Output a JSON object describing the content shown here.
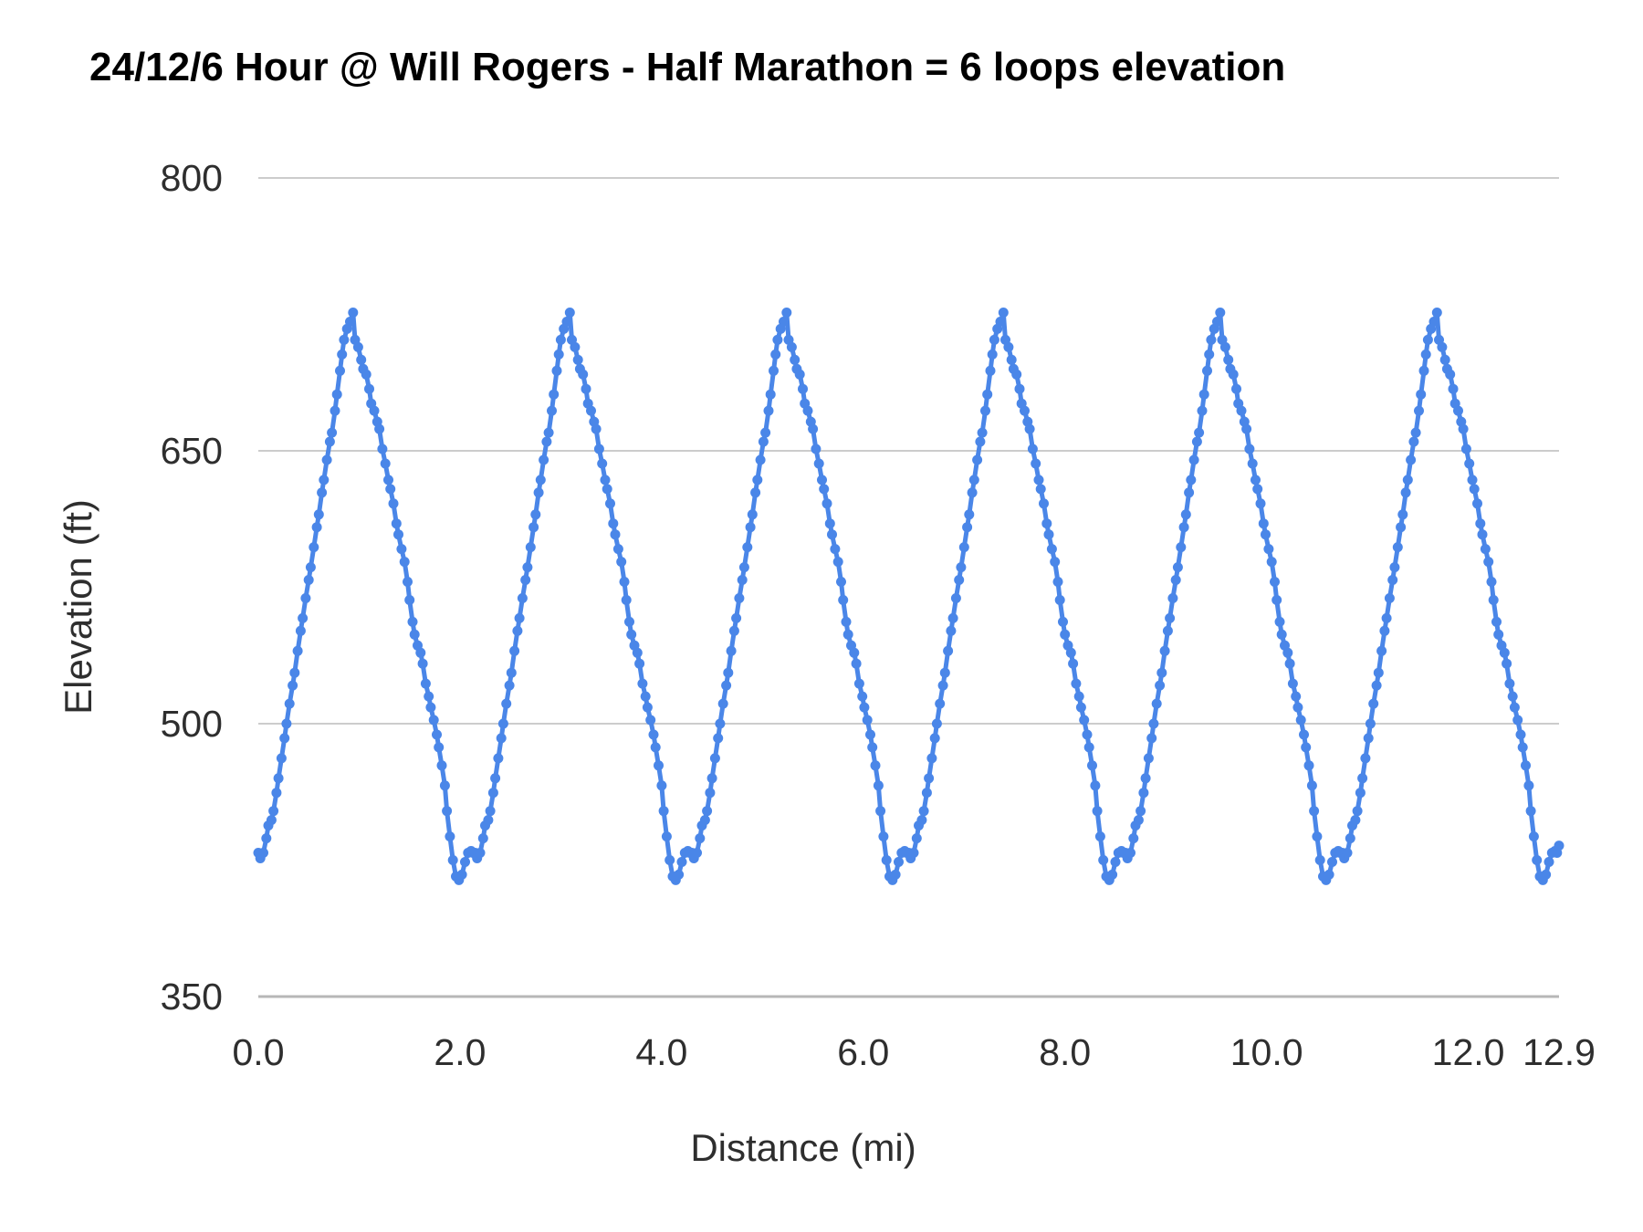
{
  "page": {
    "background": "#ffffff"
  },
  "chart_data": {
    "type": "line",
    "title": "24/12/6 Hour @ Will Rogers  - Half Marathon = 6 loops  elevation",
    "xlabel": "Distance (mi)",
    "ylabel": "Elevation (ft)",
    "xlim": [
      0,
      12.9
    ],
    "ylim": [
      350,
      800
    ],
    "grid": true,
    "legend_position": "none",
    "x_ticks": [
      {
        "value": 0,
        "label": "0.0"
      },
      {
        "value": 2,
        "label": "2.0"
      },
      {
        "value": 4,
        "label": "4.0"
      },
      {
        "value": 6,
        "label": "6.0"
      },
      {
        "value": 8,
        "label": "8.0"
      },
      {
        "value": 10,
        "label": "10.0"
      },
      {
        "value": 12,
        "label": "12.0"
      },
      {
        "value": 12.9,
        "label": "12.9"
      }
    ],
    "y_ticks": [
      {
        "value": 350,
        "label": "350"
      },
      {
        "value": 500,
        "label": "500"
      },
      {
        "value": 650,
        "label": "650"
      },
      {
        "value": 800,
        "label": "800"
      }
    ],
    "colors": {
      "series": "#4a86e8",
      "gridline": "#cccccc",
      "baseline": "#b7b7b7",
      "title_text": "#000000",
      "axis_text": "#2e2e2e"
    },
    "marker": "circle",
    "series": [
      {
        "name": "elevation",
        "loops": 6,
        "loop_length_mi": 2.15,
        "total_mi": 12.9,
        "peak_ft": 726,
        "valley_ft": 414,
        "start_ft": 429,
        "end_ft": 433,
        "loop_profile": [
          [
            0.0,
            429
          ],
          [
            0.02,
            426
          ],
          [
            0.05,
            429
          ],
          [
            0.08,
            437
          ],
          [
            0.1,
            444
          ],
          [
            0.13,
            447
          ],
          [
            0.15,
            452
          ],
          [
            0.18,
            462
          ],
          [
            0.2,
            470
          ],
          [
            0.23,
            481
          ],
          [
            0.26,
            492
          ],
          [
            0.28,
            500
          ],
          [
            0.31,
            511
          ],
          [
            0.34,
            521
          ],
          [
            0.36,
            528
          ],
          [
            0.39,
            540
          ],
          [
            0.42,
            551
          ],
          [
            0.44,
            558
          ],
          [
            0.47,
            569
          ],
          [
            0.5,
            579
          ],
          [
            0.52,
            586
          ],
          [
            0.55,
            597
          ],
          [
            0.58,
            608
          ],
          [
            0.6,
            615
          ],
          [
            0.63,
            627
          ],
          [
            0.65,
            634
          ],
          [
            0.68,
            645
          ],
          [
            0.71,
            655
          ],
          [
            0.73,
            660
          ],
          [
            0.76,
            672
          ],
          [
            0.78,
            681
          ],
          [
            0.81,
            694
          ],
          [
            0.83,
            703
          ],
          [
            0.85,
            711
          ],
          [
            0.88,
            717
          ],
          [
            0.91,
            721
          ],
          [
            0.94,
            726
          ],
          [
            0.96,
            711
          ],
          [
            0.99,
            707
          ],
          [
            1.02,
            700
          ],
          [
            1.04,
            695
          ],
          [
            1.07,
            692
          ],
          [
            1.1,
            684
          ],
          [
            1.12,
            676
          ],
          [
            1.15,
            672
          ],
          [
            1.18,
            666
          ],
          [
            1.2,
            662
          ],
          [
            1.23,
            651
          ],
          [
            1.26,
            643
          ],
          [
            1.29,
            634
          ],
          [
            1.31,
            629
          ],
          [
            1.34,
            621
          ],
          [
            1.37,
            610
          ],
          [
            1.39,
            604
          ],
          [
            1.42,
            596
          ],
          [
            1.45,
            589
          ],
          [
            1.48,
            578
          ],
          [
            1.5,
            568
          ],
          [
            1.53,
            556
          ],
          [
            1.55,
            549
          ],
          [
            1.58,
            543
          ],
          [
            1.61,
            539
          ],
          [
            1.63,
            533
          ],
          [
            1.66,
            522
          ],
          [
            1.69,
            515
          ],
          [
            1.71,
            509
          ],
          [
            1.74,
            502
          ],
          [
            1.77,
            494
          ],
          [
            1.79,
            487
          ],
          [
            1.82,
            477
          ],
          [
            1.85,
            466
          ],
          [
            1.87,
            452
          ],
          [
            1.9,
            438
          ],
          [
            1.93,
            425
          ],
          [
            1.96,
            416
          ],
          [
            1.99,
            414
          ],
          [
            2.02,
            417
          ],
          [
            2.05,
            424
          ],
          [
            2.08,
            429
          ],
          [
            2.11,
            430
          ],
          [
            2.13,
            429
          ]
        ],
        "final_point": [
          12.9,
          433
        ]
      }
    ]
  }
}
